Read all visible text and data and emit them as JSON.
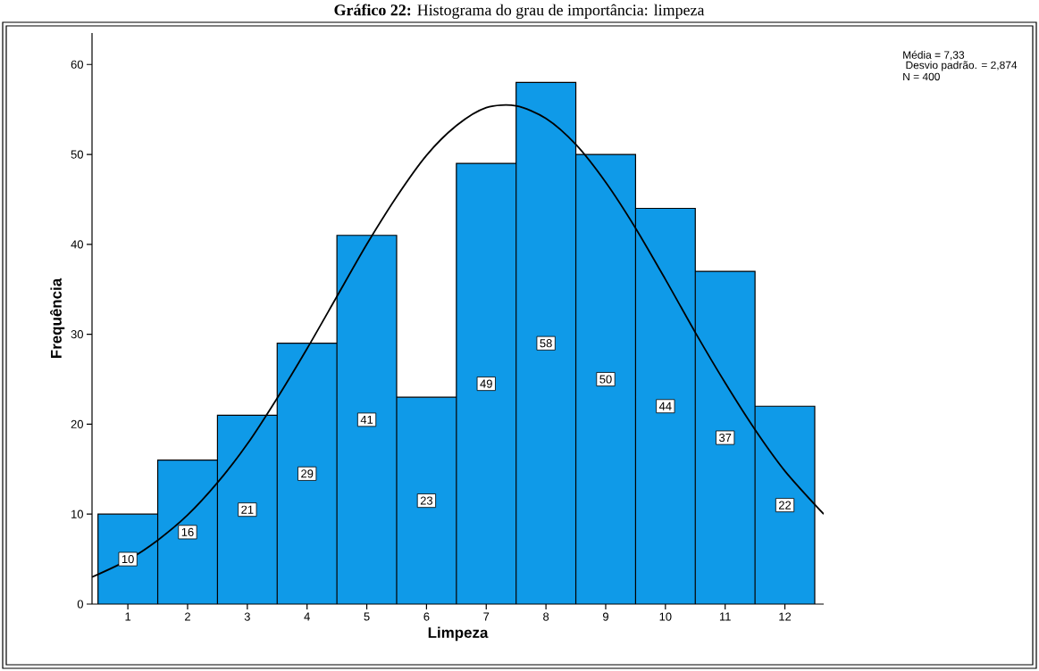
{
  "chart_data": {
    "type": "histogram",
    "title": "**Gráfico 22:** Histograma do grau de importância: limpeza",
    "xlabel": "Limpeza",
    "ylabel": "Frequência",
    "bins": [
      0.5,
      1.5,
      2.5,
      3.5,
      4.5,
      5.5,
      6.5,
      7.5,
      8.5,
      9.5,
      10.5,
      11.5,
      12.5
    ],
    "values": [
      10,
      16,
      21,
      29,
      41,
      23,
      49,
      58,
      50,
      44,
      37,
      22
    ],
    "color": "#0f9ae8",
    "value_labels": [
      "10",
      "16",
      "21",
      "29",
      "41",
      "23",
      "49",
      "58",
      "50",
      "44",
      "37",
      "22"
    ],
    "series": [
      {
        "type": "line",
        "color": "#000000",
        "x": [
          0.4,
          1,
          1.5,
          2,
          2.5,
          3,
          3.5,
          4,
          4.5,
          5,
          5.5,
          6,
          6.5,
          7,
          7.5,
          8,
          8.5,
          9,
          9.5,
          10,
          10.5,
          11,
          11.5,
          12,
          12.65
        ],
        "values": [
          3.0,
          4.9,
          7.1,
          9.9,
          13.5,
          17.8,
          22.9,
          28.4,
          34.2,
          40.0,
          45.3,
          49.9,
          53.2,
          55.2,
          55.4,
          54.0,
          51.1,
          46.9,
          41.8,
          36.1,
          30.2,
          24.6,
          19.4,
          14.8,
          10.0
        ]
      }
    ],
    "xlim": [
      0.4,
      12.65
    ],
    "ylim": [
      0,
      63.5
    ],
    "xticks": [
      1,
      2,
      3,
      4,
      5,
      6,
      7,
      8,
      9,
      10,
      11,
      12
    ],
    "yticks": [
      0,
      10,
      20,
      30,
      40,
      50,
      60
    ],
    "annotations": [
      "Média = 7,33",
      " Desvio padrão. = 2,874",
      "N = 400"
    ],
    "grid": false
  }
}
